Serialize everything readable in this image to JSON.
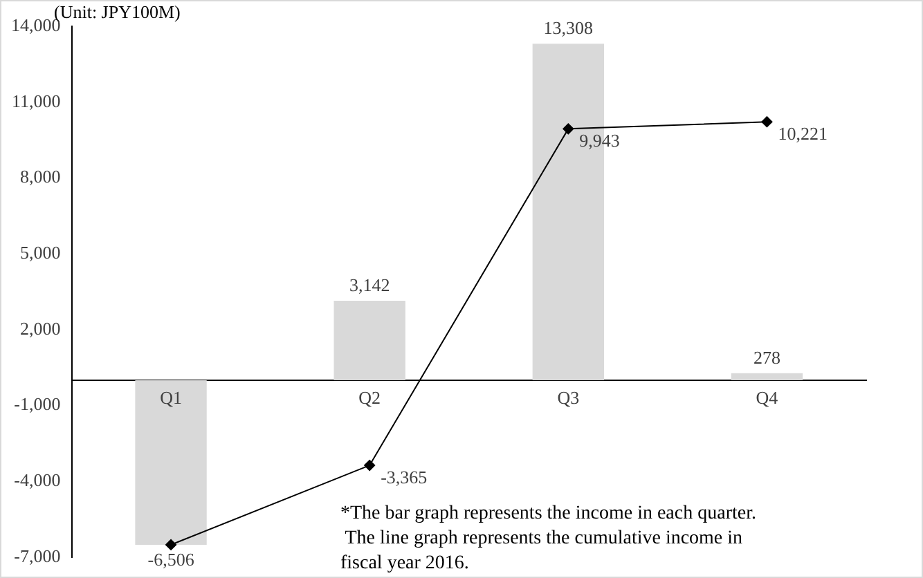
{
  "chart_data": {
    "type": "bar",
    "ylabel": "(Unit: JPY100M)",
    "categories": [
      "Q1",
      "Q2",
      "Q3",
      "Q4"
    ],
    "series": [
      {
        "color": "#d9d9d9",
        "values": [
          -6506,
          3142,
          13308,
          278
        ],
        "value_labels": [
          "-6,506",
          "3,142",
          "13,308",
          "278"
        ]
      },
      {
        "type": "line",
        "color": "#000000",
        "marker": "diamond",
        "values": [
          -6506,
          -3365,
          9943,
          10221
        ],
        "value_labels": [
          null,
          "-3,365",
          "9,943",
          "10,221"
        ]
      }
    ],
    "ylim": [
      -7000,
      14000
    ],
    "yticks": [
      {
        "value": -7000,
        "label": "-7,000"
      },
      {
        "value": -4000,
        "label": "-4,000"
      },
      {
        "value": -1000,
        "label": "-1,000"
      },
      {
        "value": 2000,
        "label": "2,000"
      },
      {
        "value": 5000,
        "label": "5,000"
      },
      {
        "value": 8000,
        "label": "8,000"
      },
      {
        "value": 11000,
        "label": "11,000"
      },
      {
        "value": 14000,
        "label": "14,000"
      }
    ],
    "grid": false,
    "legend": false,
    "annotations": [
      "*The bar graph represents the income in each quarter.\n The line graph represents the cumulative income in\nfiscal year 2016."
    ]
  }
}
